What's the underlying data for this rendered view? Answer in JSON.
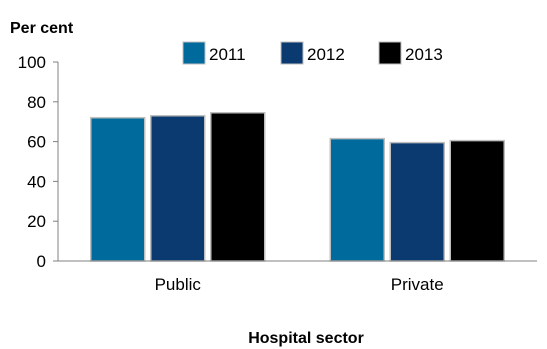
{
  "chart_data": {
    "type": "bar",
    "ylabel": "Per cent",
    "xlabel": "Hospital sector",
    "categories": [
      "Public",
      "Private"
    ],
    "yticks": [
      "0",
      "20",
      "40",
      "60",
      "80",
      "100"
    ],
    "ylim": [
      0,
      100
    ],
    "legend_position": "top",
    "grid": false,
    "series": [
      {
        "name": "2011",
        "color": "#006A9C",
        "values": [
          72,
          61.5
        ]
      },
      {
        "name": "2012",
        "color": "#0B3A70",
        "values": [
          73,
          59.5
        ]
      },
      {
        "name": "2013",
        "color": "#000000",
        "values": [
          74.5,
          60.5
        ]
      }
    ]
  }
}
